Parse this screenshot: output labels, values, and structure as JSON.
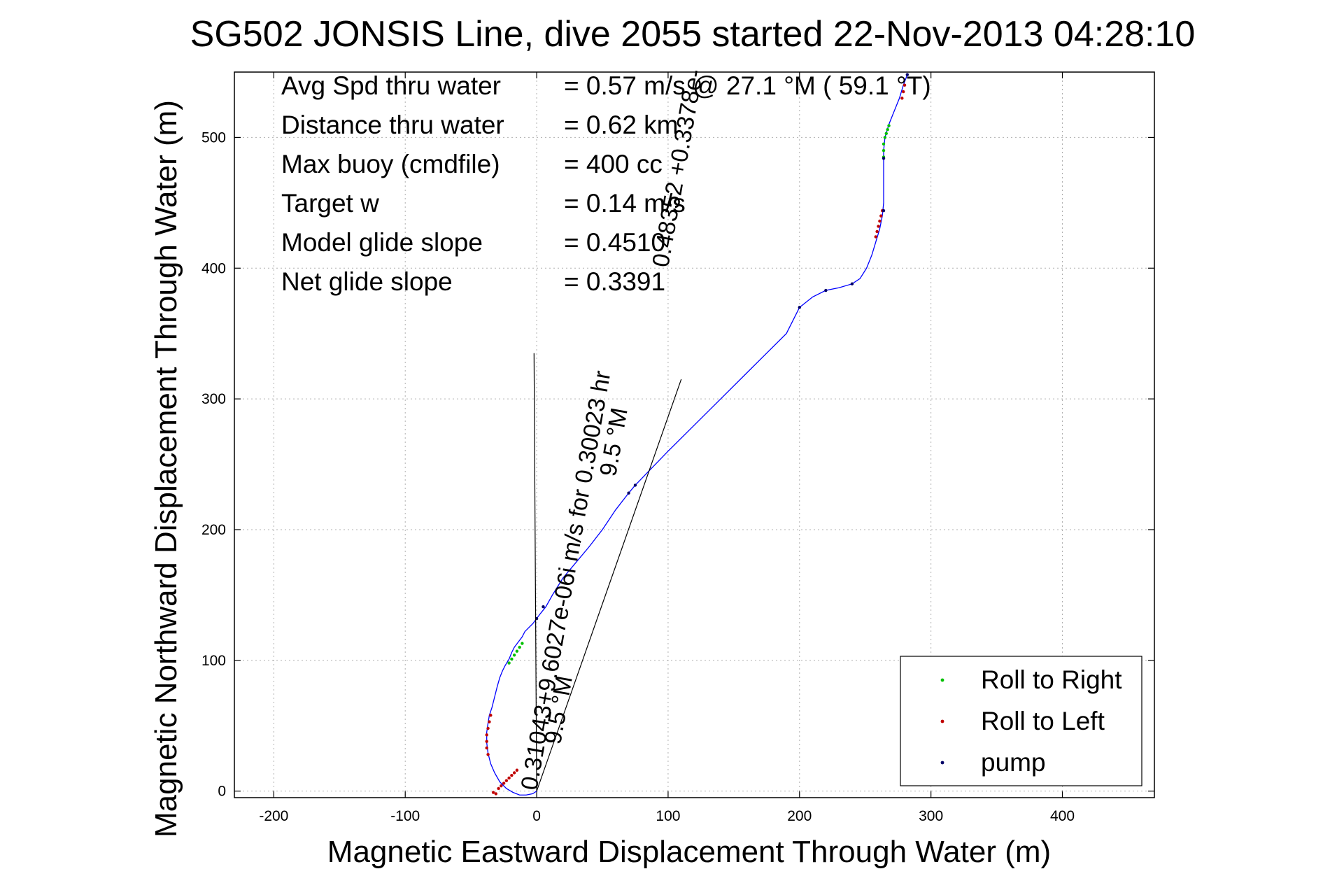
{
  "chart_data": {
    "type": "line",
    "title": "SG502 JONSIS Line, dive 2055 started 22-Nov-2013 04:28:10",
    "xlabel": "Magnetic Eastward Displacement Through Water (m)",
    "ylabel": "Magnetic Northward Displacement Through Water (m)",
    "xlim": [
      -230,
      470
    ],
    "ylim": [
      -5,
      550
    ],
    "xticks": [
      -200,
      -100,
      0,
      100,
      200,
      300,
      400
    ],
    "yticks": [
      0,
      100,
      200,
      300,
      400,
      500
    ],
    "grid": true,
    "legend_position": "bottom-right",
    "info_lines": [
      {
        "label": "Avg Spd thru water",
        "value": "=  0.57 m/s @  27.1 °M ( 59.1 °T)"
      },
      {
        "label": "Distance thru water",
        "value": "=  0.62 km"
      },
      {
        "label": "Max buoy (cmdfile)",
        "value": "= 400 cc"
      },
      {
        "label": "Target w",
        "value": "= 0.14 m/s"
      },
      {
        "label": "Model glide slope",
        "value": "= 0.4510"
      },
      {
        "label": "Net glide slope",
        "value": "= 0.3391"
      }
    ],
    "annotations": [
      {
        "text": "0.31043+9.6027e-06i m/s for 0.30023 hr",
        "x": 0,
        "y": 0,
        "angle": 80
      },
      {
        "text": "9.5 °M",
        "x": 18,
        "y": 35,
        "angle": 80
      },
      {
        "text": "9.5 °M",
        "x": 60,
        "y": 240,
        "angle": 80
      },
      {
        "text": "0.48352 +0.3378e-",
        "x": 100,
        "y": 400,
        "angle": 80
      }
    ],
    "series": [
      {
        "name": "",
        "color": "#0000ff",
        "x": [
          0,
          -3,
          -8,
          -13,
          -18,
          -23,
          -28,
          -32,
          -35,
          -37,
          -38,
          -38,
          -37,
          -36,
          -34,
          -32,
          -30,
          -28,
          -26,
          -24,
          -21,
          -19,
          -17,
          -14,
          -11,
          -9,
          -6,
          -3,
          0,
          3,
          7,
          12,
          20,
          30,
          40,
          50,
          60,
          70,
          75,
          100,
          130,
          160,
          190,
          200,
          210,
          220,
          230,
          240,
          246,
          251,
          255,
          258,
          261,
          263,
          264,
          264,
          264,
          264,
          265,
          268,
          272,
          276,
          279,
          282
        ],
        "y": [
          0,
          -2,
          -3,
          -3,
          -1,
          2,
          7,
          14,
          21,
          29,
          37,
          45,
          52,
          58,
          64,
          72,
          80,
          87,
          92,
          96,
          101,
          106,
          110,
          114,
          118,
          122,
          125,
          128,
          132,
          136,
          141,
          150,
          163,
          175,
          187,
          200,
          215,
          228,
          234,
          260,
          290,
          320,
          350,
          370,
          378,
          383,
          385,
          388,
          392,
          400,
          410,
          420,
          430,
          440,
          450,
          465,
          480,
          490,
          500,
          510,
          520,
          530,
          540,
          548
        ]
      },
      {
        "name": "Roll to Right",
        "color": "#00c000",
        "x": [
          -21,
          -19,
          -17,
          -15,
          -13,
          -11,
          264,
          264,
          264,
          265,
          266,
          267,
          268
        ],
        "y": [
          98,
          101,
          104,
          107,
          110,
          113,
          485,
          490,
          495,
          500,
          503,
          506,
          509
        ]
      },
      {
        "name": "Roll to Left",
        "color": "#c00000",
        "x": [
          -37,
          -38,
          -38,
          -38,
          -37,
          -36,
          -35,
          -33,
          -31,
          -29,
          -27,
          -25,
          -23,
          -21,
          -19,
          -17,
          -15,
          258,
          259,
          260,
          261,
          262,
          263,
          278,
          279,
          280
        ],
        "y": [
          28,
          33,
          38,
          43,
          48,
          53,
          58,
          -1,
          -2,
          2,
          4,
          6,
          8,
          10,
          12,
          14,
          16,
          424,
          428,
          432,
          436,
          440,
          444,
          530,
          535,
          540
        ]
      },
      {
        "name": "pump",
        "color": "#000066",
        "x": [
          0,
          5,
          70,
          75,
          200,
          220,
          240,
          264,
          264,
          282
        ],
        "y": [
          132,
          141,
          228,
          234,
          370,
          383,
          388,
          444,
          484,
          548
        ]
      },
      {
        "name": "",
        "color": "#000000",
        "x": [
          0,
          110
        ],
        "y": [
          0,
          315
        ]
      },
      {
        "name": "",
        "color": "#000000",
        "x": [
          -2,
          0
        ],
        "y": [
          335,
          0
        ]
      }
    ]
  }
}
